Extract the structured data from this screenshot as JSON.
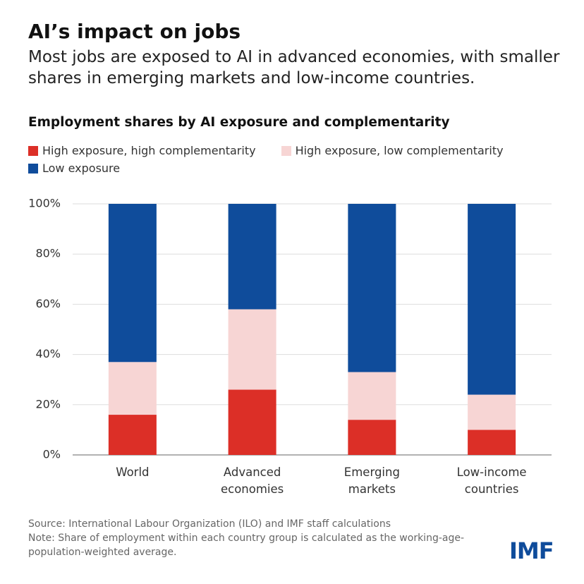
{
  "title": "AI’s impact on jobs",
  "subtitle": "Most jobs are exposed to AI in advanced economies, with smaller shares in emerging markets and low-income countries.",
  "chart_data": {
    "type": "stacked_bar",
    "title": "Employment shares by AI exposure and complementarity",
    "categories": [
      "World",
      "Advanced economies",
      "Emerging markets",
      "Low-income countries"
    ],
    "series": [
      {
        "name": "High exposure, high complementarity",
        "color": "#dc2f27",
        "values": [
          16,
          26,
          14,
          10
        ]
      },
      {
        "name": "High exposure, low complementarity",
        "color": "#f7d5d4",
        "values": [
          21,
          32,
          19,
          14
        ]
      },
      {
        "name": "Low exposure",
        "color": "#0f4c9b",
        "values": [
          63,
          42,
          67,
          76
        ]
      }
    ],
    "ylim": [
      0,
      100
    ],
    "yticks": [
      {
        "value": 0,
        "label": "0%"
      },
      {
        "value": 20,
        "label": "20%"
      },
      {
        "value": 40,
        "label": "40%"
      },
      {
        "value": 60,
        "label": "60%"
      },
      {
        "value": 80,
        "label": "80%"
      },
      {
        "value": 100,
        "label": "100%"
      }
    ],
    "grid": true
  },
  "source": "Source: International Labour Organization (ILO) and IMF staff calculations",
  "note": "Note: Share of employment within each country group is calculated as the working-age-population-weighted average.",
  "logo": "IMF"
}
